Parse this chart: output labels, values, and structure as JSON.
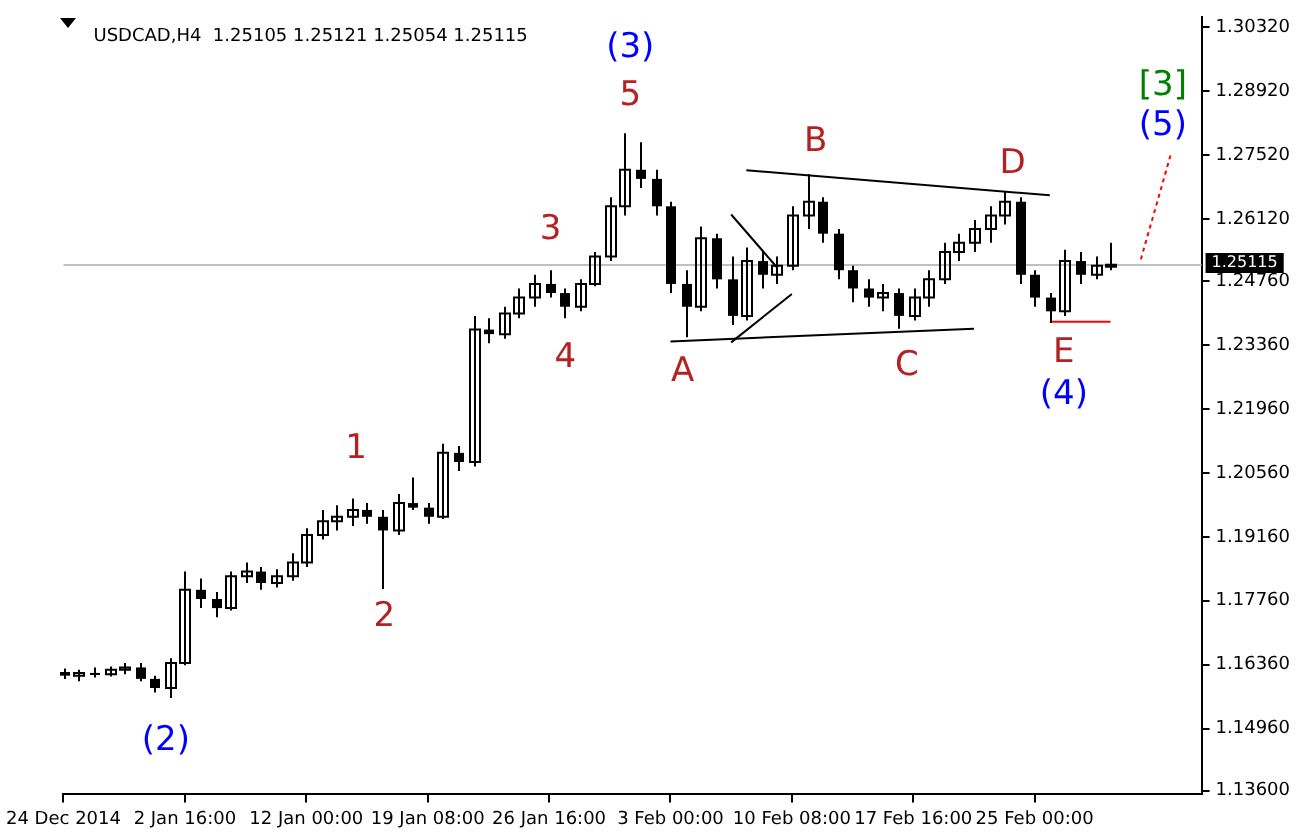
{
  "chart_data": {
    "type": "candlestick",
    "title": "USDCAD,H4  1.25105 1.25121 1.25054 1.25115",
    "categories": [
      "24 Dec 2014",
      null,
      null,
      null,
      null,
      null,
      null,
      null,
      "2 Jan 16:00",
      null,
      null,
      null,
      null,
      null,
      null,
      null,
      "12 Jan 00:00",
      null,
      null,
      null,
      null,
      null,
      null,
      null,
      "19 Jan 08:00",
      null,
      null,
      null,
      null,
      null,
      null,
      null,
      "26 Jan 16:00",
      null,
      null,
      null,
      null,
      null,
      null,
      null,
      "3 Feb 00:00",
      null,
      null,
      null,
      null,
      null,
      null,
      null,
      "10 Feb 08:00",
      null,
      null,
      null,
      null,
      null,
      null,
      null,
      "17 Feb 16:00",
      null,
      null,
      null,
      null,
      null,
      null,
      null,
      "25 Feb 00:00",
      null,
      null,
      null,
      null,
      null,
      null,
      null,
      null,
      null,
      null,
      null
    ],
    "ohlc": [
      [
        1.162,
        1.1628,
        1.1605,
        1.1612
      ],
      [
        1.1612,
        1.1625,
        1.16,
        1.1618
      ],
      [
        1.1618,
        1.163,
        1.1608,
        1.1615
      ],
      [
        1.1615,
        1.1632,
        1.161,
        1.1625
      ],
      [
        1.1625,
        1.164,
        1.1615,
        1.163
      ],
      [
        1.163,
        1.164,
        1.16,
        1.1605
      ],
      [
        1.1605,
        1.1612,
        1.1575,
        1.1585
      ],
      [
        1.1585,
        1.165,
        1.1563,
        1.164
      ],
      [
        1.164,
        1.184,
        1.1635,
        1.18
      ],
      [
        1.18,
        1.1825,
        1.176,
        1.178
      ],
      [
        1.178,
        1.1795,
        1.174,
        1.176
      ],
      [
        1.176,
        1.184,
        1.1755,
        1.183
      ],
      [
        1.183,
        1.186,
        1.1815,
        1.184
      ],
      [
        1.184,
        1.185,
        1.18,
        1.1815
      ],
      [
        1.1815,
        1.1845,
        1.1805,
        1.183
      ],
      [
        1.183,
        1.188,
        1.182,
        1.186
      ],
      [
        1.186,
        1.1935,
        1.185,
        1.192
      ],
      [
        1.192,
        1.1975,
        1.191,
        1.195
      ],
      [
        1.195,
        1.1985,
        1.193,
        1.196
      ],
      [
        1.196,
        1.2,
        1.194,
        1.1975
      ],
      [
        1.1975,
        1.199,
        1.1945,
        1.196
      ],
      [
        1.196,
        1.1975,
        1.1802,
        1.193
      ],
      [
        1.193,
        1.201,
        1.192,
        1.199
      ],
      [
        1.199,
        1.2046,
        1.1975,
        1.198
      ],
      [
        1.198,
        1.199,
        1.1945,
        1.196
      ],
      [
        1.196,
        1.212,
        1.1955,
        1.21
      ],
      [
        1.21,
        1.2115,
        1.206,
        1.208
      ],
      [
        1.208,
        1.24,
        1.207,
        1.237
      ],
      [
        1.237,
        1.2395,
        1.234,
        1.236
      ],
      [
        1.236,
        1.242,
        1.235,
        1.2405
      ],
      [
        1.2405,
        1.246,
        1.2395,
        1.244
      ],
      [
        1.244,
        1.249,
        1.242,
        1.247
      ],
      [
        1.247,
        1.25,
        1.244,
        1.245
      ],
      [
        1.245,
        1.246,
        1.2395,
        1.242
      ],
      [
        1.242,
        1.248,
        1.241,
        1.247
      ],
      [
        1.247,
        1.254,
        1.2465,
        1.253
      ],
      [
        1.253,
        1.266,
        1.252,
        1.264
      ],
      [
        1.264,
        1.28,
        1.262,
        1.272
      ],
      [
        1.272,
        1.278,
        1.268,
        1.27
      ],
      [
        1.27,
        1.272,
        1.262,
        1.264
      ],
      [
        1.264,
        1.265,
        1.245,
        1.247
      ],
      [
        1.247,
        1.25,
        1.2353,
        1.242
      ],
      [
        1.242,
        1.2596,
        1.241,
        1.257
      ],
      [
        1.257,
        1.258,
        1.246,
        1.248
      ],
      [
        1.248,
        1.253,
        1.238,
        1.24
      ],
      [
        1.24,
        1.255,
        1.239,
        1.252
      ],
      [
        1.252,
        1.254,
        1.246,
        1.249
      ],
      [
        1.249,
        1.253,
        1.247,
        1.251
      ],
      [
        1.251,
        1.264,
        1.25,
        1.262
      ],
      [
        1.262,
        1.271,
        1.259,
        1.265
      ],
      [
        1.265,
        1.266,
        1.256,
        1.258
      ],
      [
        1.258,
        1.259,
        1.248,
        1.25
      ],
      [
        1.25,
        1.251,
        1.243,
        1.246
      ],
      [
        1.246,
        1.248,
        1.242,
        1.244
      ],
      [
        1.244,
        1.247,
        1.241,
        1.245
      ],
      [
        1.245,
        1.246,
        1.2372,
        1.24
      ],
      [
        1.24,
        1.246,
        1.239,
        1.244
      ],
      [
        1.244,
        1.25,
        1.242,
        1.248
      ],
      [
        1.248,
        1.256,
        1.247,
        1.254
      ],
      [
        1.254,
        1.258,
        1.252,
        1.256
      ],
      [
        1.256,
        1.261,
        1.254,
        1.259
      ],
      [
        1.259,
        1.264,
        1.256,
        1.262
      ],
      [
        1.262,
        1.2673,
        1.26,
        1.265
      ],
      [
        1.265,
        1.266,
        1.247,
        1.249
      ],
      [
        1.249,
        1.25,
        1.242,
        1.244
      ],
      [
        1.244,
        1.245,
        1.2385,
        1.241
      ],
      [
        1.241,
        1.2545,
        1.24,
        1.252
      ],
      [
        1.252,
        1.254,
        1.247,
        1.249
      ],
      [
        1.249,
        1.253,
        1.248,
        1.251
      ],
      [
        1.251,
        1.256,
        1.25,
        1.2512
      ],
      null,
      null,
      null,
      null,
      null,
      null
    ],
    "color": "#000000",
    "series": [
      {
        "type": "line",
        "color": "#000000",
        "line_style": "solid",
        "values": [
          null,
          null,
          null,
          null,
          null,
          null,
          null,
          null,
          null,
          null,
          null,
          null,
          null,
          null,
          null,
          null,
          null,
          null,
          null,
          null,
          null,
          null,
          null,
          null,
          null,
          null,
          null,
          null,
          null,
          null,
          null,
          null,
          null,
          null,
          null,
          null,
          null,
          null,
          null,
          null,
          null,
          null,
          null,
          null,
          null,
          1.2719,
          null,
          null,
          null,
          null,
          null,
          null,
          null,
          null,
          null,
          null,
          null,
          null,
          null,
          null,
          null,
          null,
          null,
          null,
          null,
          1.2664,
          null,
          null,
          null,
          null,
          null,
          null,
          null,
          null,
          null,
          null
        ]
      },
      {
        "type": "line",
        "color": "#000000",
        "line_style": "solid",
        "values": [
          null,
          null,
          null,
          null,
          null,
          null,
          null,
          null,
          null,
          null,
          null,
          null,
          null,
          null,
          null,
          null,
          null,
          null,
          null,
          null,
          null,
          null,
          null,
          null,
          null,
          null,
          null,
          null,
          null,
          null,
          null,
          null,
          null,
          null,
          null,
          null,
          null,
          null,
          null,
          null,
          1.2344,
          null,
          null,
          null,
          null,
          null,
          null,
          null,
          null,
          null,
          null,
          null,
          null,
          null,
          null,
          null,
          null,
          null,
          null,
          null,
          1.2372,
          null,
          null,
          null,
          null,
          null,
          null,
          null,
          null,
          null,
          null,
          null,
          null,
          null,
          null,
          null
        ]
      },
      {
        "type": "line",
        "color": "#000000",
        "line_style": "solid",
        "values": [
          null,
          null,
          null,
          null,
          null,
          null,
          null,
          null,
          null,
          null,
          null,
          null,
          null,
          null,
          null,
          null,
          null,
          null,
          null,
          null,
          null,
          null,
          null,
          null,
          null,
          null,
          null,
          null,
          null,
          null,
          null,
          null,
          null,
          null,
          null,
          null,
          null,
          null,
          null,
          null,
          null,
          null,
          null,
          null,
          1.2622,
          null,
          null,
          1.2507,
          null,
          null,
          null,
          null,
          null,
          null,
          null,
          null,
          null,
          null,
          null,
          null,
          null,
          null,
          null,
          null,
          null,
          null,
          null,
          null,
          null,
          null,
          null,
          null,
          null,
          null,
          null,
          null
        ]
      },
      {
        "type": "line",
        "color": "#000000",
        "line_style": "solid",
        "values": [
          null,
          null,
          null,
          null,
          null,
          null,
          null,
          null,
          null,
          null,
          null,
          null,
          null,
          null,
          null,
          null,
          null,
          null,
          null,
          null,
          null,
          null,
          null,
          null,
          null,
          null,
          null,
          null,
          null,
          null,
          null,
          null,
          null,
          null,
          null,
          null,
          null,
          null,
          null,
          null,
          null,
          null,
          null,
          null,
          1.2342,
          null,
          null,
          null,
          1.2448,
          null,
          null,
          null,
          null,
          null,
          null,
          null,
          null,
          null,
          null,
          null,
          null,
          null,
          null,
          null,
          null,
          null,
          null,
          null,
          null,
          null,
          null,
          null,
          null,
          null,
          null,
          null
        ]
      },
      {
        "type": "line",
        "color": "#ff0000",
        "line_style": "solid",
        "values": [
          null,
          null,
          null,
          null,
          null,
          null,
          null,
          null,
          null,
          null,
          null,
          null,
          null,
          null,
          null,
          null,
          null,
          null,
          null,
          null,
          null,
          null,
          null,
          null,
          null,
          null,
          null,
          null,
          null,
          null,
          null,
          null,
          null,
          null,
          null,
          null,
          null,
          null,
          null,
          null,
          null,
          null,
          null,
          null,
          null,
          null,
          null,
          null,
          null,
          null,
          null,
          null,
          null,
          null,
          null,
          null,
          null,
          null,
          null,
          null,
          null,
          null,
          null,
          null,
          null,
          1.2387,
          null,
          null,
          null,
          1.2387,
          null,
          null,
          null,
          null,
          null,
          null
        ]
      },
      {
        "type": "line",
        "color": "#ff0000",
        "line_style": "dotted",
        "values": [
          null,
          null,
          null,
          null,
          null,
          null,
          null,
          null,
          null,
          null,
          null,
          null,
          null,
          null,
          null,
          null,
          null,
          null,
          null,
          null,
          null,
          null,
          null,
          null,
          null,
          null,
          null,
          null,
          null,
          null,
          null,
          null,
          null,
          null,
          null,
          null,
          null,
          null,
          null,
          null,
          null,
          null,
          null,
          null,
          null,
          null,
          null,
          null,
          null,
          null,
          null,
          null,
          null,
          null,
          null,
          null,
          null,
          null,
          null,
          null,
          null,
          null,
          null,
          null,
          null,
          null,
          null,
          null,
          null,
          null,
          null,
          1.2524,
          null,
          1.2757,
          null,
          null
        ]
      }
    ],
    "annotations": [
      "(2)",
      "1",
      "2",
      "3",
      "4",
      "5",
      "(3)",
      "A",
      "B",
      "C",
      "D",
      "E",
      "(4)",
      "[3]",
      "(5)"
    ],
    "ylim": [
      1.1352,
      1.3055
    ],
    "yticks": [
      {
        "value": 1.136,
        "label": "1.13600"
      },
      {
        "value": 1.1496,
        "label": "1.14960"
      },
      {
        "value": 1.1636,
        "label": "1.16360"
      },
      {
        "value": 1.1776,
        "label": "1.17760"
      },
      {
        "value": 1.1916,
        "label": "1.19160"
      },
      {
        "value": 1.2056,
        "label": "1.20560"
      },
      {
        "value": 1.2196,
        "label": "1.21960"
      },
      {
        "value": 1.2336,
        "label": "1.23360"
      },
      {
        "value": 1.2476,
        "label": "1.24760"
      },
      {
        "value": 1.2612,
        "label": "1.26120"
      },
      {
        "value": 1.2752,
        "label": "1.27520"
      },
      {
        "value": 1.2892,
        "label": "1.28920"
      },
      {
        "value": 1.3032,
        "label": "1.30320"
      }
    ],
    "ref_lines": [
      {
        "axis": "y",
        "value": 1.25115,
        "label": "1.25115",
        "color": "#c0c0c0"
      }
    ],
    "grid": false,
    "legend": false
  }
}
